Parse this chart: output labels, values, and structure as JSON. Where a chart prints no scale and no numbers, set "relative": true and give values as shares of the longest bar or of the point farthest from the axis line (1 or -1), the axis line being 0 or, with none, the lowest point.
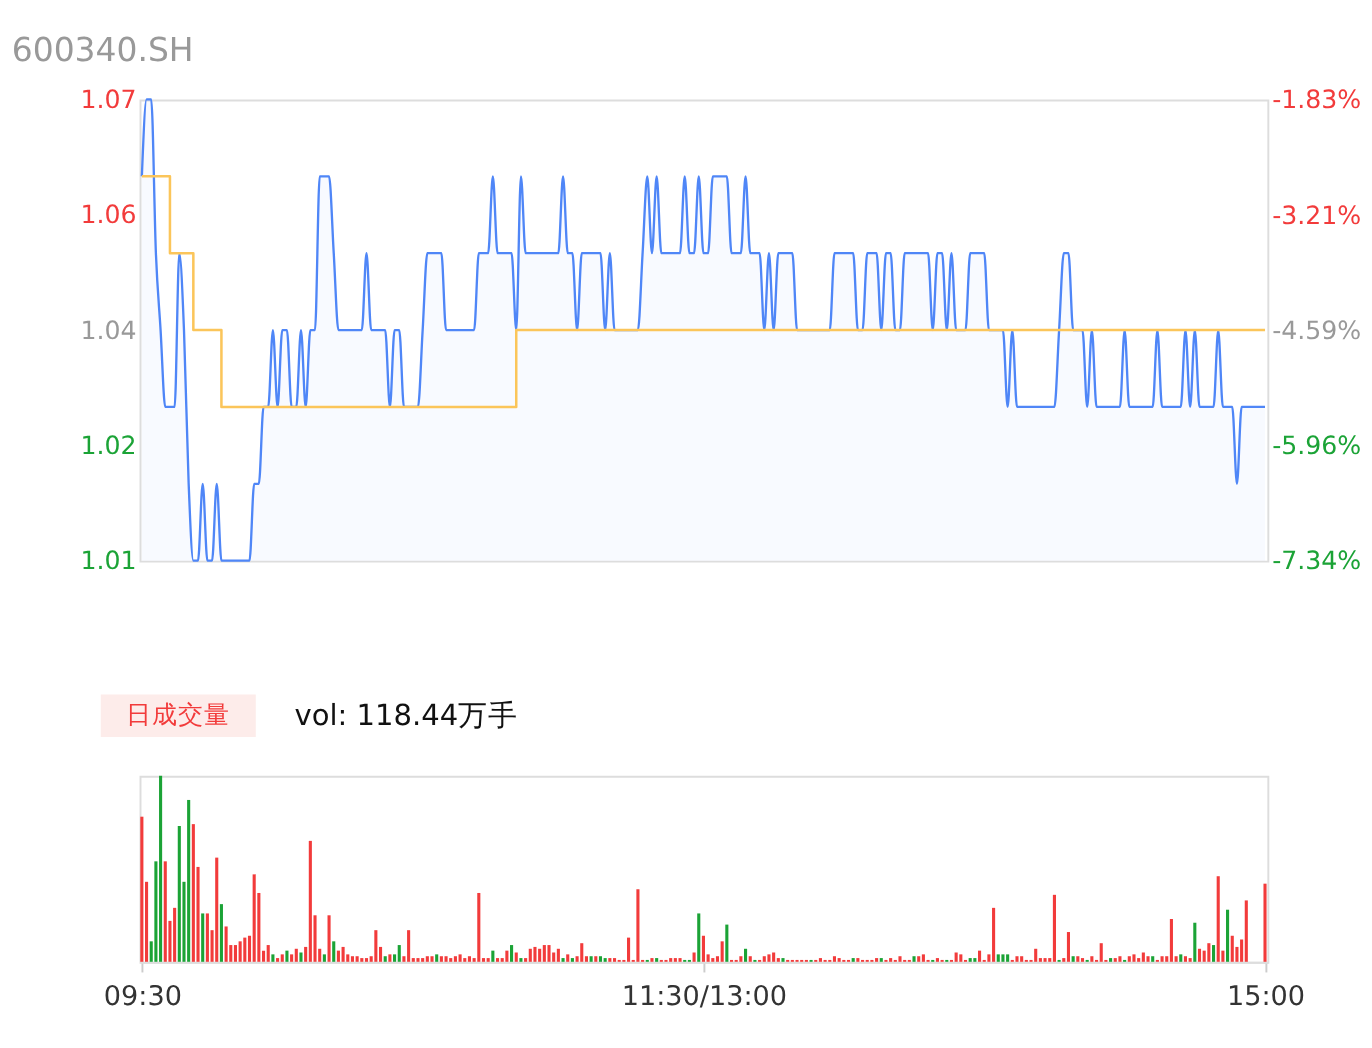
{
  "chart_data": [
    {
      "type": "line",
      "title": "600340.SH",
      "tick_labels": "y",
      "ylim": [
        1.01,
        1.07
      ],
      "categories": [
        null,
        null,
        null,
        null,
        null,
        null,
        null,
        null,
        null,
        null,
        null,
        null,
        null,
        null,
        null,
        null,
        null,
        null,
        null,
        null,
        null,
        null,
        null,
        null,
        null,
        null,
        null,
        null,
        null,
        null,
        null,
        null,
        null,
        null,
        null,
        null,
        null,
        null,
        null,
        null,
        null,
        null,
        null,
        null,
        null,
        null,
        null,
        null,
        null,
        null,
        null,
        null,
        null,
        null,
        null,
        null,
        null,
        null,
        null,
        null,
        null,
        null,
        null,
        null,
        null,
        null,
        null,
        null,
        null,
        null,
        null,
        null,
        null,
        null,
        null,
        null,
        null,
        null,
        null,
        null,
        null,
        null,
        null,
        null,
        null,
        null,
        null,
        null,
        null,
        null,
        null,
        null,
        null,
        null,
        null,
        null,
        null,
        null,
        null,
        null,
        null,
        null,
        null,
        null,
        null,
        null,
        null,
        null,
        null,
        null,
        null,
        null,
        null,
        null,
        null,
        null,
        null,
        null,
        null,
        null,
        null,
        null,
        null,
        null,
        null,
        null,
        null,
        null,
        null,
        null,
        null,
        null,
        null,
        null,
        null,
        null,
        null,
        null,
        null,
        null,
        null,
        null,
        null,
        null,
        null,
        null,
        null,
        null,
        null,
        null,
        null,
        null,
        null,
        null,
        null,
        null,
        null,
        null,
        null,
        null,
        null,
        null,
        null,
        null,
        null,
        null,
        null,
        null,
        null,
        null,
        null,
        null,
        null,
        null,
        null,
        null,
        null,
        null,
        null,
        null,
        null,
        null,
        null,
        null,
        null,
        null,
        null,
        null,
        null,
        null,
        null,
        null,
        null,
        null,
        null,
        null,
        null,
        null,
        null,
        null,
        null,
        null,
        null,
        null,
        null,
        null,
        null,
        null,
        null,
        null,
        null,
        null,
        null,
        null,
        null,
        null,
        null,
        null,
        null,
        null,
        null,
        null,
        null,
        null,
        null,
        null,
        null,
        null,
        null,
        null,
        null,
        null,
        null,
        null,
        null,
        null,
        null,
        null,
        null,
        null,
        null
      ],
      "yticks": [
        1.01,
        {
          "value": 1.025,
          "label": "1.02"
        },
        1.04,
        {
          "value": 1.055,
          "label": "1.06"
        },
        1.07
      ],
      "y2lim": [
        -7.34,
        -1.83
      ],
      "y2ticks": [
        {
          "value": -7.34,
          "label": "-7.34%"
        },
        {
          "value": -5.96,
          "label": "-5.96%"
        },
        {
          "value": -4.59,
          "label": "-4.59%"
        },
        {
          "value": -3.21,
          "label": "-3.21%"
        },
        {
          "value": -1.83,
          "label": "-1.83%"
        }
      ],
      "series": [
        {
          "type": "area",
          "color": "#4f86f7",
          "values": [
            1.06,
            1.07,
            1.07,
            1.05,
            1.04,
            1.03,
            1.03,
            1.03,
            1.05,
            1.04,
            1.02,
            1.01,
            1.01,
            1.02,
            1.01,
            1.01,
            1.02,
            1.01,
            1.01,
            1.01,
            1.01,
            1.01,
            1.01,
            1.01,
            1.02,
            1.02,
            1.03,
            1.03,
            1.04,
            1.03,
            1.04,
            1.04,
            1.03,
            1.03,
            1.04,
            1.03,
            1.04,
            1.04,
            1.06,
            1.06,
            1.06,
            1.05,
            1.04,
            1.04,
            1.04,
            1.04,
            1.04,
            1.04,
            1.05,
            1.04,
            1.04,
            1.04,
            1.04,
            1.03,
            1.04,
            1.04,
            1.03,
            1.03,
            1.03,
            1.03,
            1.04,
            1.05,
            1.05,
            1.05,
            1.05,
            1.04,
            1.04,
            1.04,
            1.04,
            1.04,
            1.04,
            1.04,
            1.05,
            1.05,
            1.05,
            1.06,
            1.05,
            1.05,
            1.05,
            1.05,
            1.04,
            1.06,
            1.05,
            1.05,
            1.05,
            1.05,
            1.05,
            1.05,
            1.05,
            1.05,
            1.06,
            1.05,
            1.05,
            1.04,
            1.05,
            1.05,
            1.05,
            1.05,
            1.05,
            1.04,
            1.05,
            1.04,
            1.04,
            1.04,
            1.04,
            1.04,
            1.04,
            1.05,
            1.06,
            1.05,
            1.06,
            1.05,
            1.05,
            1.05,
            1.05,
            1.05,
            1.06,
            1.05,
            1.05,
            1.06,
            1.05,
            1.05,
            1.06,
            1.06,
            1.06,
            1.06,
            1.05,
            1.05,
            1.05,
            1.06,
            1.05,
            1.05,
            1.05,
            1.04,
            1.05,
            1.04,
            1.05,
            1.05,
            1.05,
            1.05,
            1.04,
            1.04,
            1.04,
            1.04,
            1.04,
            1.04,
            1.04,
            1.04,
            1.05,
            1.05,
            1.05,
            1.05,
            1.05,
            1.04,
            1.04,
            1.05,
            1.05,
            1.05,
            1.04,
            1.05,
            1.05,
            1.04,
            1.04,
            1.05,
            1.05,
            1.05,
            1.05,
            1.05,
            1.05,
            1.04,
            1.05,
            1.05,
            1.04,
            1.05,
            1.04,
            1.04,
            1.04,
            1.05,
            1.05,
            1.05,
            1.05,
            1.04,
            1.04,
            1.04,
            1.04,
            1.03,
            1.04,
            1.03,
            1.03,
            1.03,
            1.03,
            1.03,
            1.03,
            1.03,
            1.03,
            1.03,
            1.04,
            1.05,
            1.05,
            1.04,
            1.04,
            1.04,
            1.03,
            1.04,
            1.03,
            1.03,
            1.03,
            1.03,
            1.03,
            1.03,
            1.04,
            1.03,
            1.03,
            1.03,
            1.03,
            1.03,
            1.03,
            1.04,
            1.03,
            1.03,
            1.03,
            1.03,
            1.03,
            1.04,
            1.03,
            1.04,
            1.03,
            1.03,
            1.03,
            1.03,
            1.04,
            1.03,
            1.03,
            1.03,
            1.02,
            1.03,
            1.03,
            1.03,
            1.03,
            1.03,
            1.03
          ]
        },
        {
          "type": "step",
          "color": "#fbc55a",
          "values": [
            1.06,
            1.06,
            1.06,
            1.06,
            1.06,
            1.06,
            1.05,
            1.05,
            1.05,
            1.05,
            1.05,
            1.04,
            1.04,
            1.04,
            1.04,
            1.04,
            1.04,
            1.03,
            1.03,
            1.03,
            1.03,
            1.03,
            1.03,
            1.03,
            1.03,
            1.03,
            1.03,
            1.03,
            1.03,
            1.03,
            1.03,
            1.03,
            1.03,
            1.03,
            1.03,
            1.03,
            1.03,
            1.03,
            1.03,
            1.03,
            1.03,
            1.03,
            1.03,
            1.03,
            1.03,
            1.03,
            1.03,
            1.03,
            1.03,
            1.03,
            1.03,
            1.03,
            1.03,
            1.03,
            1.03,
            1.03,
            1.03,
            1.03,
            1.03,
            1.03,
            1.03,
            1.03,
            1.03,
            1.03,
            1.03,
            1.03,
            1.03,
            1.03,
            1.03,
            1.03,
            1.03,
            1.03,
            1.03,
            1.03,
            1.03,
            1.03,
            1.03,
            1.03,
            1.03,
            1.03,
            1.04,
            1.04,
            1.04,
            1.04,
            1.04,
            1.04,
            1.04,
            1.04,
            1.04,
            1.04,
            1.04,
            1.04,
            1.04,
            1.04,
            1.04,
            1.04,
            1.04,
            1.04,
            1.04,
            1.04,
            1.04,
            1.04,
            1.04,
            1.04,
            1.04,
            1.04,
            1.04,
            1.04,
            1.04,
            1.04,
            1.04,
            1.04,
            1.04,
            1.04,
            1.04,
            1.04,
            1.04,
            1.04,
            1.04,
            1.04,
            1.04,
            1.04,
            1.04,
            1.04,
            1.04,
            1.04,
            1.04,
            1.04,
            1.04,
            1.04,
            1.04,
            1.04,
            1.04,
            1.04,
            1.04,
            1.04,
            1.04,
            1.04,
            1.04,
            1.04,
            1.04,
            1.04,
            1.04,
            1.04,
            1.04,
            1.04,
            1.04,
            1.04,
            1.04,
            1.04,
            1.04,
            1.04,
            1.04,
            1.04,
            1.04,
            1.04,
            1.04,
            1.04,
            1.04,
            1.04,
            1.04,
            1.04,
            1.04,
            1.04,
            1.04,
            1.04,
            1.04,
            1.04,
            1.04,
            1.04,
            1.04,
            1.04,
            1.04,
            1.04,
            1.04,
            1.04,
            1.04,
            1.04,
            1.04,
            1.04,
            1.04,
            1.04,
            1.04,
            1.04,
            1.04,
            1.04,
            1.04,
            1.04,
            1.04,
            1.04,
            1.04,
            1.04,
            1.04,
            1.04,
            1.04,
            1.04,
            1.04,
            1.04,
            1.04,
            1.04,
            1.04,
            1.04,
            1.04,
            1.04,
            1.04,
            1.04,
            1.04,
            1.04,
            1.04,
            1.04,
            1.04,
            1.04,
            1.04,
            1.04,
            1.04,
            1.04,
            1.04,
            1.04,
            1.04,
            1.04,
            1.04,
            1.04,
            1.04,
            1.04,
            1.04,
            1.04,
            1.04,
            1.04,
            1.04,
            1.04,
            1.04,
            1.04,
            1.04,
            1.04,
            1.04,
            1.04,
            1.04,
            1.04,
            1.04,
            1.04,
            1.04
          ]
        }
      ]
    },
    {
      "type": "bar",
      "title": "日成交量",
      "subtitle": "vol: 118.44万手",
      "relative": true,
      "tick_labels": "x",
      "categories": [
        "09:30",
        null,
        null,
        null,
        null,
        null,
        null,
        null,
        null,
        null,
        null,
        null,
        null,
        null,
        null,
        null,
        null,
        null,
        null,
        null,
        null,
        null,
        null,
        null,
        null,
        null,
        null,
        null,
        null,
        null,
        null,
        null,
        null,
        null,
        null,
        null,
        null,
        null,
        null,
        null,
        null,
        null,
        null,
        null,
        null,
        null,
        null,
        null,
        null,
        null,
        null,
        null,
        null,
        null,
        null,
        null,
        null,
        null,
        null,
        null,
        null,
        null,
        null,
        null,
        null,
        null,
        null,
        null,
        null,
        null,
        null,
        null,
        null,
        null,
        null,
        null,
        null,
        null,
        null,
        null,
        null,
        null,
        null,
        null,
        null,
        null,
        null,
        null,
        null,
        null,
        null,
        null,
        null,
        null,
        null,
        null,
        null,
        null,
        null,
        null,
        null,
        null,
        null,
        null,
        null,
        null,
        null,
        null,
        null,
        null,
        null,
        null,
        null,
        null,
        null,
        null,
        null,
        null,
        null,
        null,
        "11:30/13:00",
        null,
        null,
        null,
        null,
        null,
        null,
        null,
        null,
        null,
        null,
        null,
        null,
        null,
        null,
        null,
        null,
        null,
        null,
        null,
        null,
        null,
        null,
        null,
        null,
        null,
        null,
        null,
        null,
        null,
        null,
        null,
        null,
        null,
        null,
        null,
        null,
        null,
        null,
        null,
        null,
        null,
        null,
        null,
        null,
        null,
        null,
        null,
        null,
        null,
        null,
        null,
        null,
        null,
        null,
        null,
        null,
        null,
        null,
        null,
        null,
        null,
        null,
        null,
        null,
        null,
        null,
        null,
        null,
        null,
        null,
        null,
        null,
        null,
        null,
        null,
        null,
        null,
        null,
        null,
        null,
        null,
        null,
        null,
        null,
        null,
        null,
        null,
        null,
        null,
        null,
        null,
        null,
        null,
        null,
        null,
        null,
        null,
        null,
        null,
        null,
        null,
        null,
        null,
        null,
        null,
        null,
        null,
        null,
        null,
        null,
        null,
        null,
        null,
        null,
        null,
        null,
        null,
        null,
        null,
        "15:00"
      ],
      "series": [
        {
          "color": "#f23b3b",
          "values": [
            0.78,
            0.43,
            null,
            null,
            null,
            0.54,
            0.22,
            0.29,
            null,
            null,
            null,
            0.74,
            0.51,
            null,
            0.26,
            0.17,
            0.56,
            null,
            0.19,
            0.09,
            0.09,
            0.11,
            0.13,
            0.14,
            0.47,
            0.37,
            0.06,
            0.09,
            null,
            0.02,
            0.04,
            null,
            0.04,
            0.07,
            null,
            0.08,
            0.65,
            0.25,
            0.07,
            null,
            0.25,
            null,
            0.06,
            0.08,
            0.04,
            0.03,
            0.03,
            0.02,
            0.02,
            0.03,
            0.17,
            0.08,
            null,
            0.04,
            null,
            null,
            0.03,
            0.17,
            0.02,
            0.02,
            0.02,
            0.03,
            0.03,
            null,
            0.03,
            0.03,
            0.02,
            0.03,
            0.04,
            0.02,
            0.03,
            0.02,
            0.37,
            0.02,
            0.02,
            null,
            0.02,
            0.02,
            0.06,
            null,
            0.05,
            null,
            0.02,
            0.07,
            0.08,
            0.07,
            0.09,
            0.09,
            0.05,
            0.07,
            null,
            0.04,
            null,
            0.03,
            0.1,
            0.03,
            null,
            0.03,
            null,
            null,
            0.02,
            0.02,
            0.01,
            0.01,
            0.13,
            0.01,
            0.39,
            0.01,
            null,
            0.02,
            null,
            0.01,
            0.01,
            0.02,
            0.02,
            0.02,
            null,
            null,
            0.05,
            null,
            0.14,
            0.04,
            0.02,
            0.03,
            0.11,
            null,
            0.01,
            0.01,
            0.03,
            null,
            0.03,
            null,
            0.01,
            0.03,
            0.04,
            0.05,
            0.02,
            null,
            0.01,
            0.01,
            0.01,
            0.01,
            0.01,
            null,
            0.01,
            0.02,
            0.01,
            0.01,
            0.03,
            0.02,
            0.01,
            0.01,
            null,
            0.02,
            0.01,
            0.01,
            0.01,
            0.02,
            null,
            0.01,
            0.02,
            0.01,
            0.03,
            0.01,
            0.01,
            null,
            0.03,
            0.04,
            0.01,
            null,
            0.02,
            0.01,
            null,
            0.01,
            0.05,
            0.04,
            0.01,
            null,
            null,
            0.06,
            0.01,
            0.04,
            0.29,
            null,
            null,
            null,
            0.01,
            0.03,
            0.03,
            0.01,
            0.01,
            0.07,
            0.02,
            0.02,
            0.02,
            0.36,
            null,
            0.02,
            0.16,
            null,
            0.03,
            0.02,
            null,
            0.03,
            0.01,
            0.1,
            0.01,
            null,
            0.02,
            0.03,
            null,
            0.03,
            0.04,
            0.02,
            0.05,
            0.03,
            null,
            0.01,
            0.03,
            0.03,
            0.23,
            0.03,
            null,
            0.03,
            0.02,
            null,
            0.07,
            0.06,
            0.1,
            null,
            0.46,
            0.06,
            null,
            0.14,
            0.08,
            0.12,
            0.33,
            null,
            null,
            null,
            0.42
          ]
        },
        {
          "color": "#1ba336",
          "values": [
            null,
            null,
            0.11,
            0.54,
            1.0,
            null,
            null,
            null,
            0.73,
            0.43,
            0.87,
            null,
            null,
            0.26,
            null,
            null,
            null,
            0.31,
            null,
            null,
            null,
            null,
            null,
            null,
            null,
            null,
            null,
            null,
            0.04,
            null,
            null,
            0.06,
            null,
            null,
            0.05,
            null,
            null,
            null,
            null,
            0.04,
            null,
            0.11,
            null,
            null,
            null,
            null,
            null,
            null,
            null,
            null,
            null,
            null,
            0.03,
            null,
            0.04,
            0.09,
            null,
            null,
            null,
            null,
            null,
            null,
            null,
            0.04,
            null,
            null,
            null,
            null,
            null,
            null,
            null,
            null,
            null,
            null,
            null,
            0.06,
            null,
            null,
            null,
            0.09,
            null,
            0.02,
            null,
            null,
            null,
            null,
            null,
            null,
            null,
            null,
            0.02,
            null,
            0.02,
            null,
            null,
            null,
            0.03,
            null,
            0.03,
            0.02,
            null,
            null,
            null,
            null,
            null,
            null,
            null,
            null,
            0.01,
            null,
            0.02,
            null,
            null,
            null,
            null,
            null,
            0.01,
            0.01,
            null,
            0.26,
            null,
            null,
            null,
            null,
            null,
            0.2,
            null,
            null,
            null,
            0.07,
            null,
            0.01,
            null,
            null,
            null,
            null,
            null,
            0.02,
            null,
            null,
            null,
            null,
            null,
            0.01,
            null,
            null,
            null,
            null,
            null,
            null,
            null,
            null,
            0.02,
            null,
            null,
            null,
            null,
            null,
            0.02,
            null,
            null,
            null,
            null,
            null,
            null,
            0.03,
            null,
            null,
            null,
            0.01,
            null,
            null,
            0.01,
            null,
            null,
            null,
            null,
            0.02,
            0.02,
            null,
            null,
            null,
            null,
            0.04,
            0.04,
            0.04,
            null,
            null,
            null,
            null,
            null,
            null,
            null,
            null,
            null,
            null,
            0.01,
            null,
            null,
            0.03,
            null,
            null,
            0.01,
            null,
            null,
            null,
            null,
            0.02,
            null,
            null,
            0.01,
            null,
            null,
            null,
            null,
            null,
            0.03,
            null,
            null,
            null,
            null,
            null,
            0.04,
            null,
            null,
            0.21,
            null,
            null,
            null,
            0.09,
            null,
            null,
            0.28,
            null,
            null,
            null,
            null,
            null,
            null,
            null,
            null
          ]
        }
      ]
    }
  ]
}
